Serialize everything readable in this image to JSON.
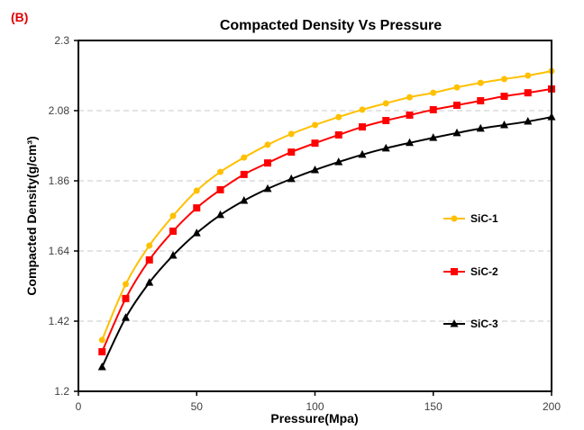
{
  "panel_label": "(B)",
  "chart_data": {
    "type": "line",
    "title": "Compacted Density Vs Pressure",
    "xlabel": "Pressure(Mpa)",
    "ylabel": "Compacted Density(g/cm³)",
    "xlim": [
      0,
      200
    ],
    "ylim": [
      1.2,
      2.3
    ],
    "xticks": [
      0,
      50,
      100,
      150,
      200
    ],
    "yticks": [
      1.2,
      1.42,
      1.64,
      1.86,
      2.08,
      2.3
    ],
    "ytick_labels": [
      "1.2",
      "1.42",
      "1.64",
      "1.86",
      "2.08",
      "2.3"
    ],
    "grid": "horizontal dashed",
    "legend_position": "right, inside",
    "x": [
      10,
      20,
      30,
      40,
      50,
      60,
      70,
      80,
      90,
      100,
      110,
      120,
      130,
      140,
      150,
      160,
      170,
      180,
      190,
      200
    ],
    "series": [
      {
        "name": "SiC-1",
        "color": "#FFC000",
        "marker": "circle",
        "values": [
          1.361,
          1.536,
          1.657,
          1.75,
          1.829,
          1.888,
          1.933,
          1.973,
          2.007,
          2.035,
          2.06,
          2.083,
          2.103,
          2.122,
          2.136,
          2.153,
          2.167,
          2.179,
          2.19,
          2.204
        ]
      },
      {
        "name": "SiC-2",
        "color": "#FF0000",
        "marker": "square",
        "values": [
          1.324,
          1.491,
          1.612,
          1.702,
          1.775,
          1.832,
          1.88,
          1.916,
          1.95,
          1.978,
          2.004,
          2.029,
          2.049,
          2.066,
          2.083,
          2.097,
          2.111,
          2.125,
          2.136,
          2.148
        ]
      },
      {
        "name": "SiC-3",
        "color": "#000000",
        "marker": "triangle",
        "values": [
          1.276,
          1.431,
          1.541,
          1.626,
          1.696,
          1.753,
          1.798,
          1.835,
          1.866,
          1.894,
          1.919,
          1.942,
          1.962,
          1.979,
          1.995,
          2.01,
          2.024,
          2.035,
          2.046,
          2.06
        ]
      }
    ]
  }
}
